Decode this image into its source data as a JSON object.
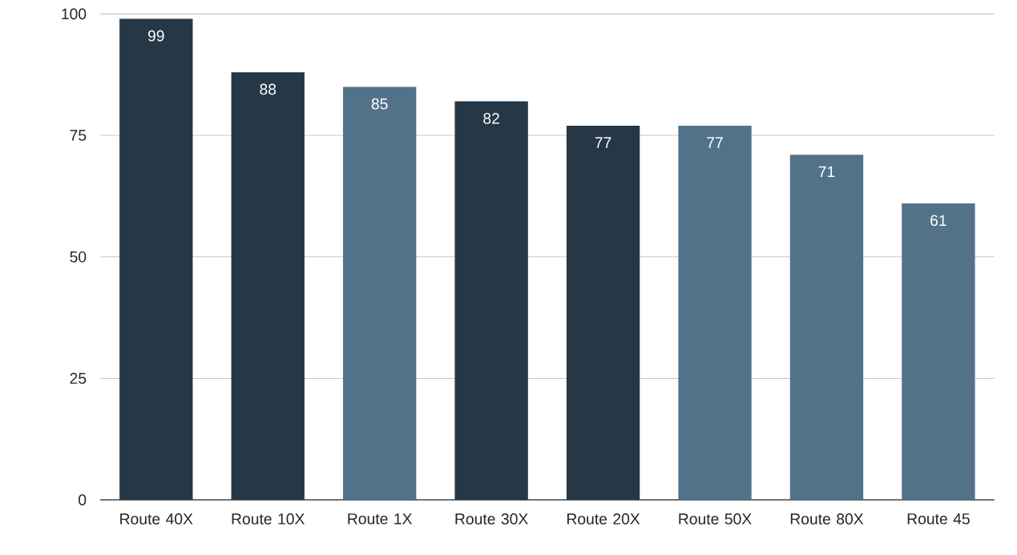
{
  "chart_data": {
    "type": "bar",
    "categories": [
      "Route 40X",
      "Route 10X",
      "Route 1X",
      "Route 30X",
      "Route 20X",
      "Route 50X",
      "Route 80X",
      "Route 45"
    ],
    "values": [
      99,
      88,
      85,
      82,
      77,
      77,
      71,
      61
    ],
    "colors": [
      "#263746",
      "#263746",
      "#52728a",
      "#263746",
      "#263746",
      "#52728a",
      "#52728a",
      "#52728a"
    ],
    "ylim": [
      0,
      100
    ],
    "yticks": [
      0,
      25,
      50,
      75,
      100
    ],
    "grid": "y",
    "data_labels": true
  }
}
